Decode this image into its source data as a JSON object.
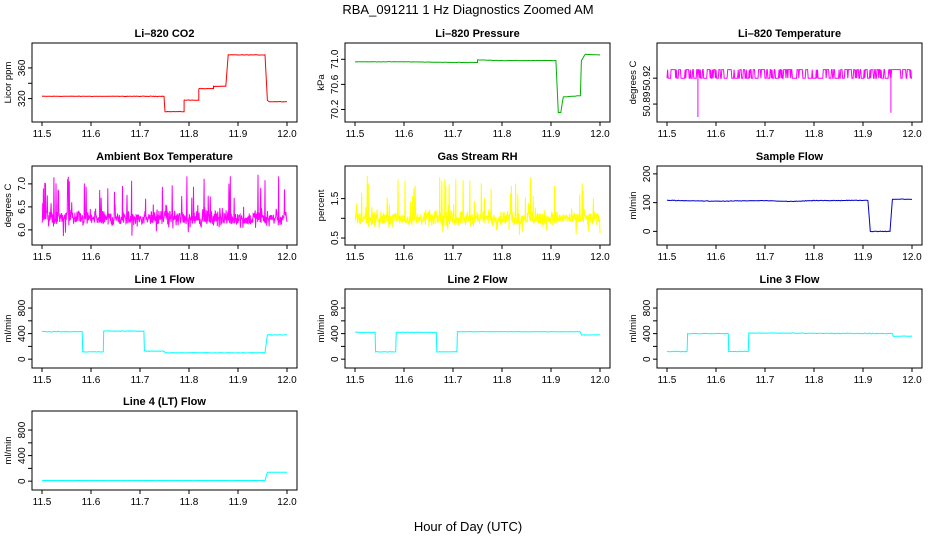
{
  "figure": {
    "title": "RBA_091211  1 Hz Diagnostics Zoomed AM",
    "xlabel": "Hour of Day (UTC)"
  },
  "chart_data": [
    {
      "id": "co2",
      "type": "line",
      "title": "Li–820 CO2",
      "ylabel": "Licor ppm",
      "color": "#ff0000",
      "xlim": [
        11.5,
        12.0
      ],
      "ylim": [
        296,
        386
      ],
      "yticks": [
        320,
        340,
        360
      ],
      "ytick_labels": [
        "320",
        "",
        "360"
      ],
      "x": [
        11.5,
        11.749,
        11.751,
        11.79,
        11.79,
        11.82,
        11.82,
        11.85,
        11.85,
        11.875,
        11.88,
        11.955,
        11.96,
        11.963,
        12.0
      ],
      "y": [
        323,
        323,
        303,
        303,
        318,
        318,
        333,
        333,
        336,
        336,
        377,
        377,
        318,
        316,
        316
      ],
      "noise": 0.5
    },
    {
      "id": "pressure",
      "type": "line",
      "title": "Li–820 Pressure",
      "ylabel": "kPa",
      "color": "#00b000",
      "xlim": [
        11.5,
        12.0
      ],
      "ylim": [
        70.08,
        71.18
      ],
      "yticks": [
        70.2,
        70.6,
        71.0
      ],
      "ytick_labels": [
        "70.2",
        "70.6",
        "71.0"
      ],
      "x": [
        11.5,
        11.6,
        11.7,
        11.75,
        11.75,
        11.8,
        11.85,
        11.9,
        11.91,
        11.915,
        11.92,
        11.925,
        11.96,
        11.962,
        11.97,
        12.0
      ],
      "y": [
        70.96,
        70.96,
        70.95,
        70.95,
        70.99,
        70.98,
        70.98,
        70.98,
        70.98,
        70.15,
        70.15,
        70.4,
        70.42,
        70.98,
        71.08,
        71.07
      ],
      "noise": 0.005
    },
    {
      "id": "licor_temp",
      "type": "line",
      "title": "Li–820 Temperature",
      "ylabel": "degrees C",
      "color": "#ff00ff",
      "xlim": [
        11.5,
        12.0
      ],
      "ylim": [
        50.875,
        50.955
      ],
      "yticks": [
        50.89,
        50.92
      ],
      "ytick_labels": [
        "50.89",
        "50.92"
      ],
      "x": [
        11.5,
        12.0
      ],
      "y": [
        50.92,
        50.92
      ],
      "quantized_levels": [
        50.92,
        50.93
      ],
      "spikes": [
        {
          "x": 11.563,
          "y": 50.875
        },
        {
          "x": 11.957,
          "y": 50.88
        }
      ]
    },
    {
      "id": "box_temp",
      "type": "line",
      "title": "Ambient Box Temperature",
      "ylabel": "degrees C",
      "color": "#ff00ff",
      "xlim": [
        11.5,
        12.0
      ],
      "ylim": [
        5.78,
        7.28
      ],
      "yticks": [
        6.0,
        6.5,
        7.0
      ],
      "ytick_labels": [
        "6.0",
        "6.5",
        "7.0"
      ],
      "x": [
        11.5,
        12.0
      ],
      "y": [
        6.25,
        6.25
      ],
      "noise_band": [
        5.85,
        7.2
      ]
    },
    {
      "id": "rh",
      "type": "line",
      "title": "Gas Stream RH",
      "ylabel": "percent",
      "color": "#ffff00",
      "xlim": [
        11.5,
        12.0
      ],
      "ylim": [
        0.45,
        2.2
      ],
      "yticks": [
        0.5,
        1.0,
        1.5
      ],
      "ytick_labels": [
        "0.5",
        "",
        "1.5"
      ],
      "x": [
        11.5,
        12.0
      ],
      "y": [
        1.0,
        1.0
      ],
      "noise_band": [
        0.55,
        2.1
      ]
    },
    {
      "id": "sample_flow",
      "type": "line",
      "title": "Sample Flow",
      "ylabel": "ml/min",
      "color": "#0000cd",
      "xlim": [
        11.5,
        12.0
      ],
      "ylim": [
        -30,
        210
      ],
      "yticks": [
        0,
        100,
        200
      ],
      "ytick_labels": [
        "0",
        "100",
        "200"
      ],
      "x": [
        11.5,
        11.6,
        11.7,
        11.75,
        11.8,
        11.9,
        11.91,
        11.915,
        11.955,
        11.96,
        12.0
      ],
      "y": [
        108,
        105,
        107,
        104,
        107,
        108,
        108,
        0,
        0,
        112,
        112
      ],
      "noise": 1.5
    },
    {
      "id": "line1",
      "type": "line",
      "title": "Line 1 Flow",
      "ylabel": "ml/min",
      "color": "#00ffff",
      "xlim": [
        11.5,
        12.0
      ],
      "ylim": [
        -60,
        1020
      ],
      "yticks": [
        0,
        200,
        400,
        600,
        800
      ],
      "ytick_labels": [
        "0",
        "",
        "400",
        "",
        "800"
      ],
      "x": [
        11.5,
        11.582,
        11.583,
        11.625,
        11.626,
        11.708,
        11.709,
        11.75,
        11.751,
        11.955,
        11.96,
        12.0
      ],
      "y": [
        430,
        430,
        115,
        115,
        440,
        440,
        125,
        125,
        100,
        100,
        380,
        380
      ],
      "noise": 8
    },
    {
      "id": "line2",
      "type": "line",
      "title": "Line 2 Flow",
      "ylabel": "ml/min",
      "color": "#00ffff",
      "xlim": [
        11.5,
        12.0
      ],
      "ylim": [
        -60,
        1020
      ],
      "yticks": [
        0,
        200,
        400,
        600,
        800
      ],
      "ytick_labels": [
        "0",
        "",
        "400",
        "",
        "800"
      ],
      "x": [
        11.5,
        11.541,
        11.542,
        11.583,
        11.584,
        11.666,
        11.667,
        11.708,
        11.709,
        11.96,
        11.962,
        12.0
      ],
      "y": [
        420,
        420,
        115,
        115,
        420,
        420,
        115,
        115,
        430,
        430,
        380,
        380
      ],
      "noise": 6
    },
    {
      "id": "line3",
      "type": "line",
      "title": "Line 3 Flow",
      "ylabel": "ml/min",
      "color": "#00ffff",
      "xlim": [
        11.5,
        12.0
      ],
      "ylim": [
        -60,
        1020
      ],
      "yticks": [
        0,
        200,
        400,
        600,
        800
      ],
      "ytick_labels": [
        "0",
        "",
        "400",
        "",
        "800"
      ],
      "x": [
        11.5,
        11.541,
        11.542,
        11.625,
        11.626,
        11.666,
        11.667,
        11.96,
        11.962,
        12.0
      ],
      "y": [
        120,
        120,
        400,
        400,
        120,
        120,
        410,
        400,
        360,
        360
      ],
      "noise": 8
    },
    {
      "id": "line4",
      "type": "line",
      "title": "Line 4 (LT) Flow",
      "ylabel": "ml/min",
      "color": "#00ffff",
      "xlim": [
        11.5,
        12.0
      ],
      "ylim": [
        -60,
        1020
      ],
      "yticks": [
        0,
        200,
        400,
        600,
        800
      ],
      "ytick_labels": [
        "0",
        "",
        "400",
        "",
        "800"
      ],
      "x": [
        11.5,
        11.955,
        11.96,
        12.0
      ],
      "y": [
        10,
        10,
        140,
        140
      ],
      "noise": 2
    }
  ],
  "x_axis": {
    "ticks": [
      11.5,
      11.6,
      11.7,
      11.8,
      11.9,
      12.0
    ],
    "tick_labels": [
      "11.5",
      "11.6",
      "11.7",
      "11.8",
      "11.9",
      "12.0"
    ]
  }
}
